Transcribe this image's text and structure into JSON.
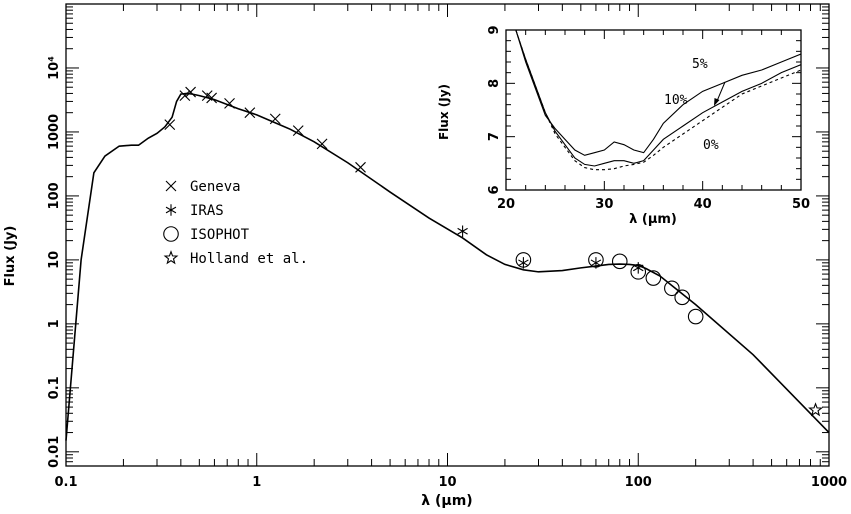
{
  "chart_data": [
    {
      "type": "scatter",
      "title": "",
      "xlabel": "λ (μm)",
      "ylabel": "Flux (Jy)",
      "xscale": "log",
      "yscale": "log",
      "xlim": [
        0.1,
        1000
      ],
      "ylim": [
        0.006,
        100000
      ],
      "xticks": [
        0.1,
        1,
        10,
        100,
        1000
      ],
      "xtick_labels": [
        "0.1",
        "1",
        "10",
        "100",
        "1000"
      ],
      "yticks": [
        0.01,
        0.1,
        1,
        10,
        100,
        1000,
        10000
      ],
      "ytick_labels": [
        "0.01",
        "0.1",
        "1",
        "10",
        "100",
        "1000",
        "10⁴"
      ],
      "legend_position": "left",
      "series": [
        {
          "name": "Geneva",
          "marker": "x",
          "x": [
            0.35,
            0.42,
            0.45,
            0.55,
            0.58,
            0.72,
            0.92,
            1.25,
            1.65,
            2.2,
            3.5
          ],
          "y": [
            1300,
            3700,
            4200,
            3700,
            3400,
            2800,
            2000,
            1600,
            1050,
            650,
            280
          ]
        },
        {
          "name": "IRAS",
          "marker": "asterisk",
          "x": [
            12,
            25,
            60,
            100
          ],
          "y": [
            28,
            9,
            9,
            7.5
          ]
        },
        {
          "name": "ISOPHOT",
          "marker": "circle",
          "x": [
            25,
            60,
            80,
            100,
            120,
            150,
            170,
            200
          ],
          "y": [
            10,
            10,
            9.5,
            6.5,
            5.2,
            3.6,
            2.6,
            1.3
          ]
        },
        {
          "name": "Holland et al.",
          "marker": "star",
          "x": [
            850
          ],
          "y": [
            0.045
          ]
        },
        {
          "name": "",
          "type": "line",
          "x": [
            0.1,
            0.12,
            0.14,
            0.16,
            0.19,
            0.22,
            0.24,
            0.27,
            0.3,
            0.33,
            0.36,
            0.38,
            0.4,
            0.43,
            0.46,
            0.5,
            0.6,
            0.8,
            1,
            1.5,
            2,
            3,
            5,
            8,
            12,
            16,
            20,
            25,
            30,
            40,
            50,
            60,
            70,
            80,
            90,
            100,
            110,
            130,
            200,
            400,
            1000
          ],
          "y": [
            0.015,
            10,
            230,
            420,
            600,
            620,
            620,
            800,
            950,
            1200,
            1700,
            3000,
            3900,
            4000,
            3900,
            3700,
            3200,
            2300,
            1850,
            1100,
            700,
            330,
            115,
            45,
            22,
            12,
            8.5,
            7,
            6.5,
            6.8,
            7.5,
            8,
            8.5,
            8.6,
            8.5,
            8.2,
            7.3,
            5.6,
            2,
            0.33,
            0.02
          ]
        }
      ]
    },
    {
      "type": "line",
      "title": "",
      "xlabel": "λ (μm)",
      "ylabel": "Flux (Jy)",
      "xlim": [
        20,
        50
      ],
      "ylim": [
        6,
        9
      ],
      "xticks": [
        20,
        30,
        40,
        50
      ],
      "yticks": [
        6,
        7,
        8,
        9
      ],
      "annotations": [
        "5%",
        "10%",
        "0%"
      ],
      "series": [
        {
          "name": "5%",
          "style": "solid",
          "x": [
            21,
            22,
            23,
            24,
            25,
            26,
            27,
            28,
            29,
            30,
            31,
            32,
            33,
            34,
            35,
            36,
            38,
            40,
            42,
            44,
            46,
            48,
            50
          ],
          "y": [
            9,
            8.45,
            7.95,
            7.45,
            7.1,
            6.85,
            6.6,
            6.48,
            6.45,
            6.5,
            6.55,
            6.55,
            6.5,
            6.55,
            6.75,
            6.95,
            7.2,
            7.45,
            7.65,
            7.85,
            8.0,
            8.2,
            8.35
          ]
        },
        {
          "name": "10%",
          "style": "solid",
          "x": [
            21,
            22,
            23,
            24,
            25,
            26,
            27,
            28,
            29,
            30,
            31,
            32,
            33,
            34,
            35,
            36,
            38,
            40,
            42,
            44,
            46,
            48,
            50
          ],
          "y": [
            9,
            8.4,
            7.9,
            7.4,
            7.15,
            6.95,
            6.75,
            6.65,
            6.7,
            6.75,
            6.9,
            6.85,
            6.75,
            6.7,
            6.95,
            7.25,
            7.6,
            7.85,
            8.0,
            8.15,
            8.25,
            8.4,
            8.55
          ]
        },
        {
          "name": "0%",
          "style": "dashed",
          "x": [
            21,
            22,
            23,
            24,
            25,
            26,
            27,
            28,
            29,
            30,
            31,
            32,
            33,
            34,
            35,
            36,
            38,
            40,
            42,
            44,
            46,
            48,
            50
          ],
          "y": [
            9,
            8.45,
            7.95,
            7.45,
            7.05,
            6.8,
            6.55,
            6.42,
            6.38,
            6.38,
            6.4,
            6.45,
            6.48,
            6.52,
            6.65,
            6.8,
            7.05,
            7.3,
            7.55,
            7.8,
            7.95,
            8.1,
            8.25
          ]
        }
      ]
    }
  ]
}
